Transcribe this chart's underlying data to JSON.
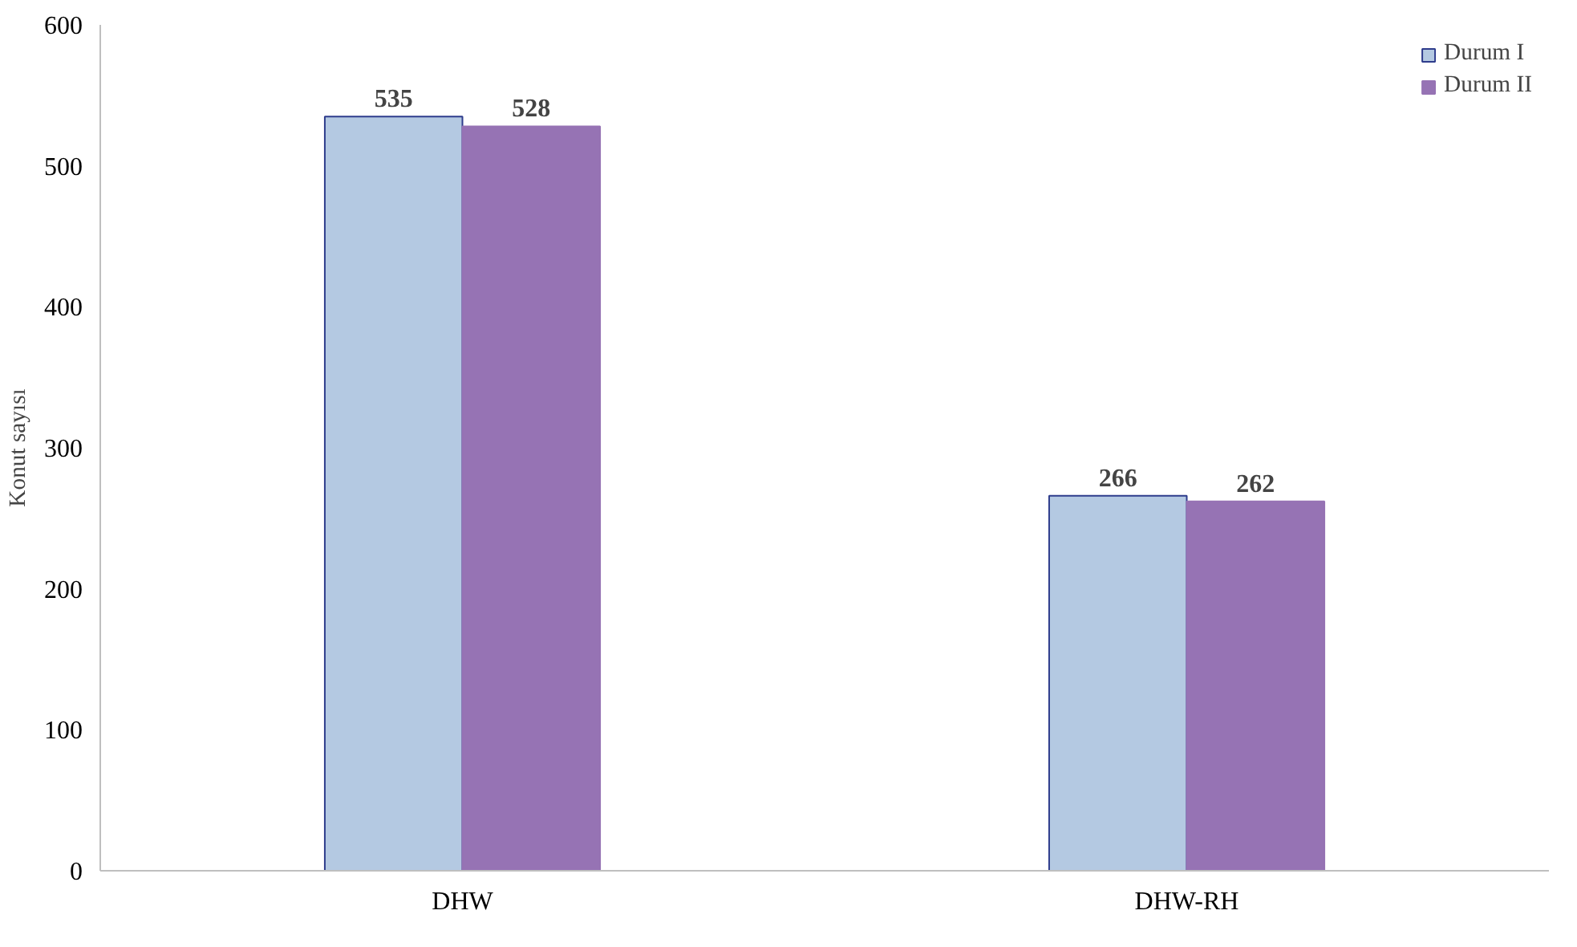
{
  "chart_data": {
    "type": "bar",
    "ylabel": "Konut sayısı",
    "categories": [
      "DHW",
      "DHW-RH"
    ],
    "series": [
      {
        "name": "Durum I",
        "color": "#b4c9e2",
        "values": [
          535,
          266
        ]
      },
      {
        "name": "Durum II",
        "color": "#9673b4",
        "values": [
          528,
          262
        ]
      }
    ],
    "ylim": [
      0,
      600
    ],
    "yticks": [
      0,
      100,
      200,
      300,
      400,
      500,
      600
    ],
    "grid": false,
    "legend": "top right",
    "data_labels": true
  }
}
